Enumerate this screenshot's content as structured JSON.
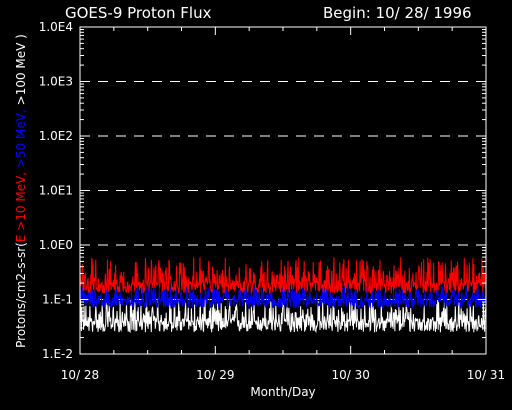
{
  "chart_data": {
    "type": "line",
    "title": "GOES-9 Proton Flux",
    "subtitle": "Begin: 10/ 28/ 1996",
    "xlabel": "Month/Day",
    "ylabel_parts": [
      {
        "text": "Protons/cm2-s-sr(",
        "color": "#ffffff"
      },
      {
        "text": "E >10 MeV,",
        "color": "#ff0000"
      },
      {
        "text": " >50 MeV,",
        "color": "#0000ff"
      },
      {
        "text": " >100 MeV )",
        "color": "#ffffff"
      }
    ],
    "y_scale": "log",
    "ylim": [
      0.01,
      10000
    ],
    "y_ticks": [
      {
        "value": 0.01,
        "label": "1.E-2"
      },
      {
        "value": 0.1,
        "label": "1.E-1"
      },
      {
        "value": 1,
        "label": "1.0E0"
      },
      {
        "value": 10,
        "label": "1.0E1"
      },
      {
        "value": 100,
        "label": "1.0E2"
      },
      {
        "value": 1000,
        "label": "1.0E3"
      },
      {
        "value": 10000,
        "label": "1.0E4"
      }
    ],
    "x_ticks": [
      {
        "value": 0,
        "label": "10/ 28"
      },
      {
        "value": 1,
        "label": "10/ 29"
      },
      {
        "value": 2,
        "label": "10/ 30"
      },
      {
        "value": 3,
        "label": "10/ 31"
      }
    ],
    "xlim": [
      0,
      3
    ],
    "grid": "dashed horizontal at decades",
    "series": [
      {
        "name": "E >10 MeV",
        "color": "#ff0000",
        "typical": 0.2,
        "min": 0.13,
        "max": 0.6
      },
      {
        "name": ">50 MeV",
        "color": "#0000ff",
        "typical": 0.1,
        "min": 0.07,
        "max": 0.18
      },
      {
        "name": ">100 MeV",
        "color": "#ffffff",
        "typical": 0.04,
        "min": 0.025,
        "max": 0.1
      }
    ]
  }
}
